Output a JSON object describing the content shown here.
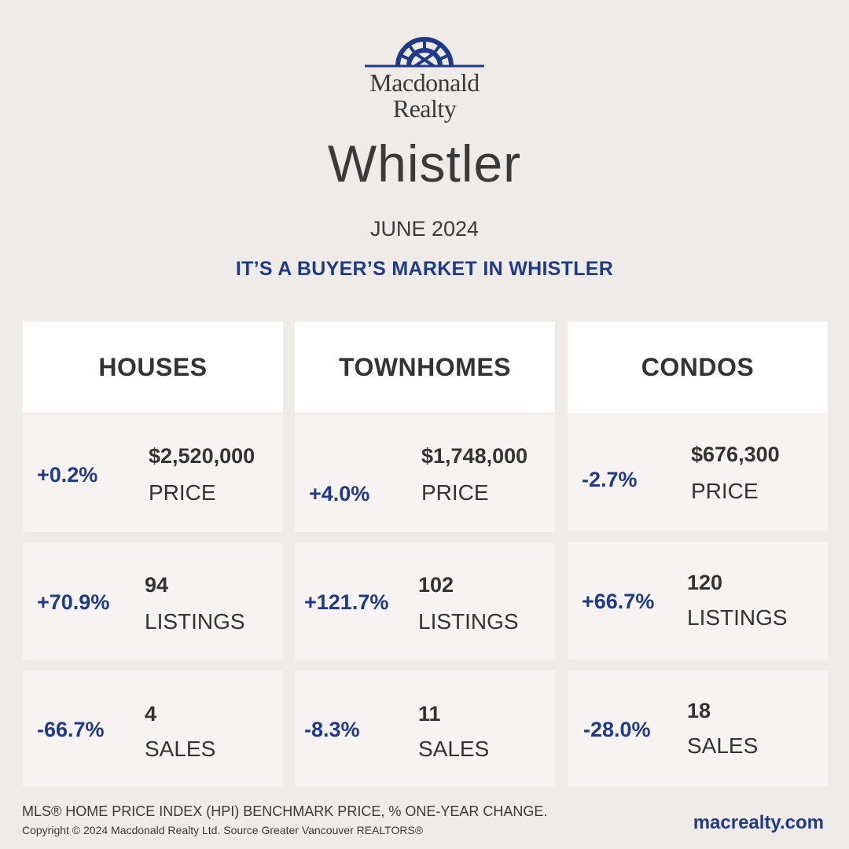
{
  "brand": {
    "line1": "Macdonald",
    "line2": "Realty",
    "logo_icon": "sunburst-arch-icon",
    "logo_color": "#1f3a8a"
  },
  "city": "Whistler",
  "date": "JUNE 2024",
  "headline": "IT’S A BUYER’S MARKET IN WHISTLER",
  "columns": [
    {
      "title": "HOUSES",
      "price": {
        "change": "+0.2%",
        "value": "$2,520,000",
        "label": "PRICE"
      },
      "listings": {
        "change": "+70.9%",
        "value": "94",
        "label": "LISTINGS"
      },
      "sales": {
        "change": "-66.7%",
        "value": "4",
        "label": "SALES"
      }
    },
    {
      "title": "TOWNHOMES",
      "price": {
        "change": "+4.0%",
        "value": "$1,748,000",
        "label": "PRICE"
      },
      "listings": {
        "change": "+121.7%",
        "value": "102",
        "label": "LISTINGS"
      },
      "sales": {
        "change": "-8.3%",
        "value": "11",
        "label": "SALES"
      }
    },
    {
      "title": "CONDOS",
      "price": {
        "change": "-2.7%",
        "value": "$676,300",
        "label": "PRICE"
      },
      "listings": {
        "change": "+66.7%",
        "value": "120",
        "label": "LISTINGS"
      },
      "sales": {
        "change": "-28.0%",
        "value": "18",
        "label": "SALES"
      }
    }
  ],
  "footer": {
    "note": "MLS® HOME PRICE INDEX (HPI) BENCHMARK PRICE, % ONE-YEAR CHANGE.",
    "copyright": "Copyright © 2024 Macdonald Realty Ltd. Source Greater Vancouver REALTORS®",
    "website": "macrealty.com"
  },
  "colors": {
    "accent": "#1f3a8a",
    "background": "#efebe8",
    "card": "#f6f3f2",
    "header": "#ffffff"
  }
}
